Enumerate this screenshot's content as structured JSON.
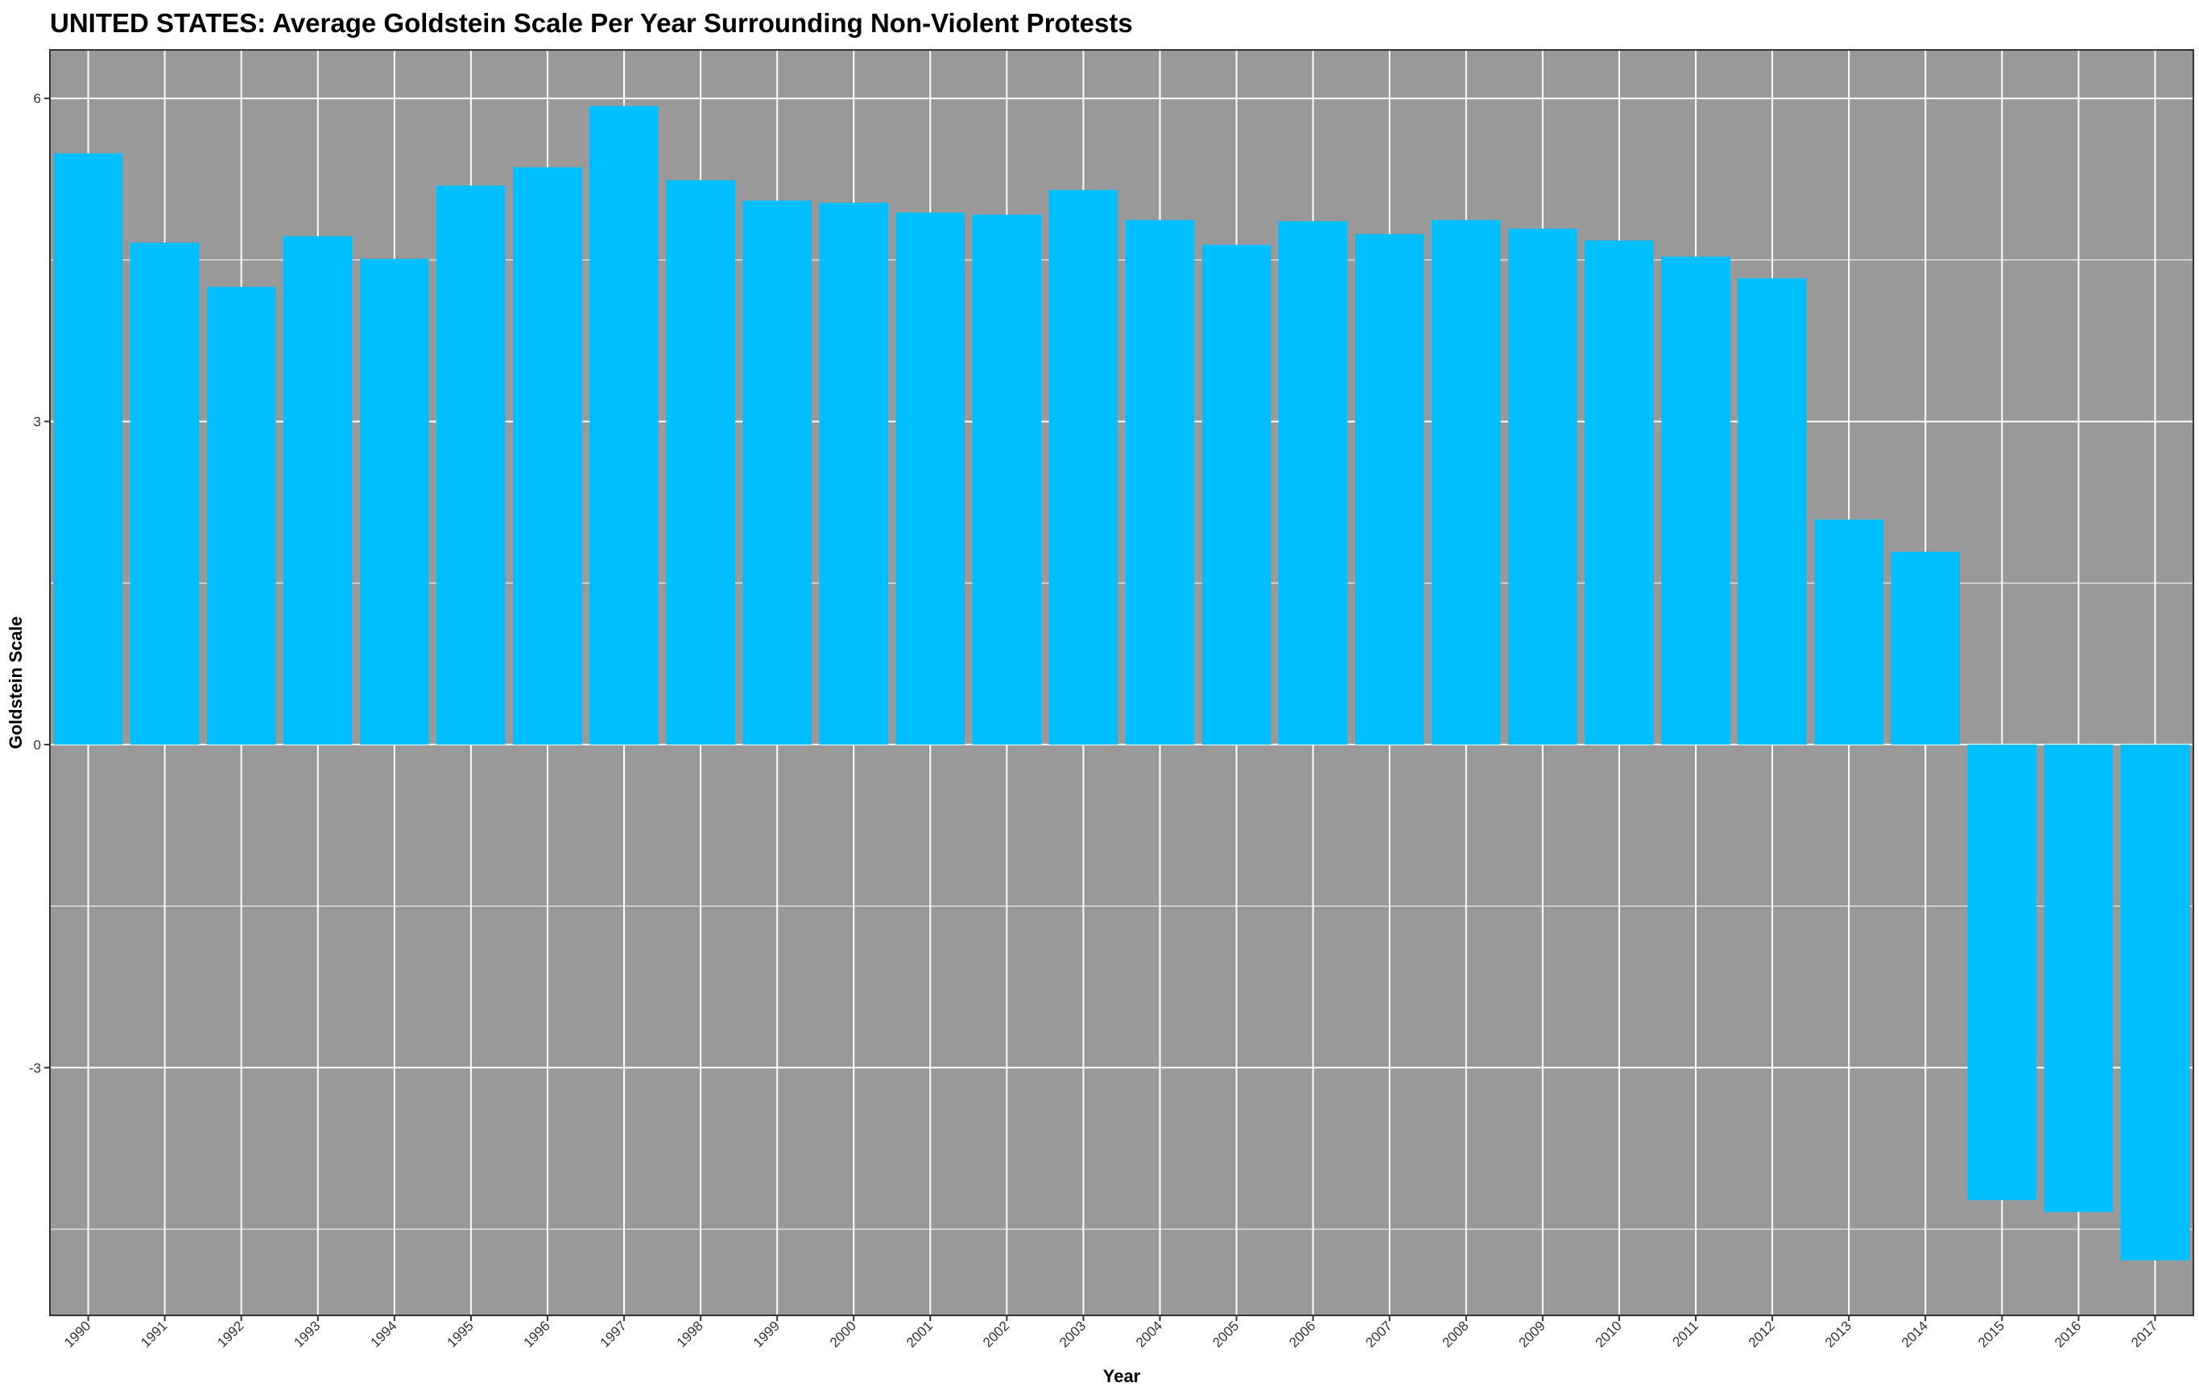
{
  "chart_data": {
    "type": "bar",
    "title": "UNITED STATES: Average Goldstein Scale Per Year Surrounding Non-Violent Protests",
    "xlabel": "Year",
    "ylabel": "Goldstein Scale",
    "categories": [
      "1990",
      "1991",
      "1992",
      "1993",
      "1994",
      "1995",
      "1996",
      "1997",
      "1998",
      "1999",
      "2000",
      "2001",
      "2002",
      "2003",
      "2004",
      "2005",
      "2006",
      "2007",
      "2008",
      "2009",
      "2010",
      "2011",
      "2012",
      "2013",
      "2014",
      "2015",
      "2016",
      "2017"
    ],
    "values": [
      5.49,
      4.66,
      4.25,
      4.72,
      4.51,
      5.19,
      5.36,
      5.93,
      5.24,
      5.05,
      5.03,
      4.94,
      4.92,
      5.15,
      4.87,
      4.64,
      4.86,
      4.74,
      4.87,
      4.79,
      4.68,
      4.53,
      4.33,
      2.09,
      1.79,
      -4.23,
      -4.34,
      -4.79
    ],
    "yticks": [
      -3,
      0,
      3,
      6
    ],
    "ylim": [
      -5.3,
      6.45
    ],
    "grid": true,
    "bar_color": "#00BFFF",
    "panel_color": "#999999",
    "grid_color": "#FFFFFF"
  }
}
